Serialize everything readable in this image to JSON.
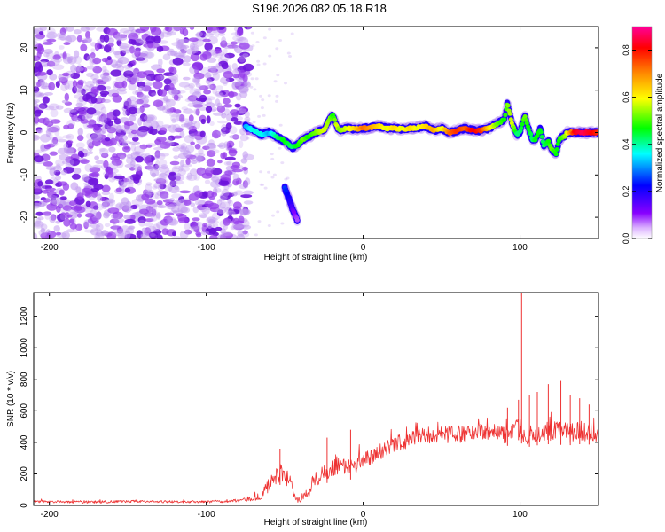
{
  "figure": {
    "title": "S196.2026.082.05.18.R18"
  },
  "chart_data": [
    {
      "type": "heatmap",
      "title": "",
      "xlabel": "Height of straight line (km)",
      "ylabel": "Frequency (Hz)",
      "xlim": [
        -210,
        150
      ],
      "ylim": [
        -25,
        25
      ],
      "xticks": [
        -200,
        -100,
        0,
        100
      ],
      "yticks": [
        -20,
        -10,
        0,
        10,
        20
      ],
      "colorbar": {
        "label": "Normalized spectral amplitude",
        "range": [
          0.0,
          0.9
        ],
        "ticks": [
          0.0,
          0.2,
          0.4,
          0.6,
          0.8
        ],
        "colors": [
          "#ffffff",
          "#8800ff",
          "#0000ff",
          "#00ffff",
          "#00ff00",
          "#ffff00",
          "#ff8800",
          "#ff0000",
          "#ff0099"
        ]
      },
      "noise_region_x": [
        -210,
        -75
      ],
      "signal_track": {
        "x": [
          -75,
          -70,
          -65,
          -60,
          -55,
          -50,
          -45,
          -42,
          -38,
          -35,
          -30,
          -25,
          -21,
          -19,
          -17,
          -15,
          -10,
          -5,
          0,
          5,
          10,
          15,
          20,
          25,
          30,
          35,
          40,
          45,
          50,
          55,
          60,
          65,
          70,
          75,
          80,
          85,
          90,
          92,
          95,
          98,
          100,
          103,
          105,
          108,
          110,
          113,
          115,
          118,
          120,
          123,
          125,
          128,
          130,
          135,
          140,
          145,
          150
        ],
        "freq": [
          1.5,
          0.5,
          -0.5,
          0.0,
          -1.0,
          -2.0,
          -3.5,
          -3.0,
          -1.5,
          -1.0,
          0.0,
          0.5,
          3.5,
          4.0,
          1.5,
          0.5,
          1.0,
          0.8,
          1.0,
          1.2,
          1.5,
          1.0,
          1.0,
          0.8,
          1.0,
          1.2,
          1.5,
          0.5,
          1.0,
          0.0,
          0.5,
          1.0,
          0.5,
          0.5,
          1.0,
          2.0,
          3.0,
          7.0,
          2.0,
          -0.5,
          0.0,
          4.0,
          1.5,
          -2.0,
          -1.5,
          1.0,
          -3.0,
          -2.0,
          -4.0,
          -5.0,
          -1.5,
          -1.0,
          0.0,
          0.0,
          0.0,
          0.0,
          0.0
        ],
        "amp": [
          0.3,
          0.35,
          0.35,
          0.3,
          0.4,
          0.45,
          0.4,
          0.45,
          0.5,
          0.45,
          0.5,
          0.55,
          0.5,
          0.45,
          0.55,
          0.5,
          0.55,
          0.6,
          0.7,
          0.65,
          0.6,
          0.55,
          0.6,
          0.55,
          0.6,
          0.55,
          0.6,
          0.65,
          0.55,
          0.7,
          0.75,
          0.7,
          0.8,
          0.75,
          0.6,
          0.5,
          0.45,
          0.5,
          0.55,
          0.4,
          0.4,
          0.5,
          0.45,
          0.4,
          0.45,
          0.45,
          0.4,
          0.45,
          0.5,
          0.45,
          0.45,
          0.5,
          0.55,
          0.8,
          0.85,
          0.8,
          0.75
        ]
      },
      "secondary_track": {
        "x": [
          -50,
          -48,
          -46,
          -44,
          -42
        ],
        "freq": [
          -13.0,
          -15.0,
          -17.0,
          -19.0,
          -20.5
        ],
        "amp": [
          0.25,
          0.22,
          0.18,
          0.12,
          0.08
        ]
      }
    },
    {
      "type": "line",
      "title": "",
      "xlabel": "Height of straight line (km)",
      "ylabel": "SNR (10 * v/v)",
      "xlim": [
        -210,
        150
      ],
      "ylim": [
        0,
        1350
      ],
      "xticks": [
        -200,
        -100,
        0,
        100
      ],
      "yticks": [
        0,
        200,
        400,
        600,
        800,
        1000,
        1200
      ],
      "color": "#ee3333",
      "series": [
        {
          "name": "SNR",
          "x": [
            -210,
            -180,
            -150,
            -120,
            -90,
            -75,
            -65,
            -60,
            -56,
            -53,
            -50,
            -48,
            -45,
            -43,
            -40,
            -35,
            -30,
            -25,
            -20,
            -15,
            -10,
            -5,
            0,
            5,
            10,
            20,
            30,
            40,
            50,
            60,
            70,
            80,
            90,
            95,
            100,
            103,
            105,
            110,
            120,
            130,
            140,
            150
          ],
          "y": [
            25,
            20,
            25,
            22,
            25,
            35,
            60,
            130,
            170,
            210,
            190,
            150,
            120,
            30,
            40,
            90,
            170,
            210,
            240,
            260,
            240,
            250,
            280,
            310,
            340,
            390,
            420,
            440,
            450,
            450,
            460,
            470,
            450,
            470,
            500,
            420,
            450,
            460,
            470,
            460,
            470,
            460
          ],
          "spread": [
            8,
            8,
            8,
            8,
            8,
            12,
            25,
            45,
            55,
            60,
            55,
            45,
            35,
            15,
            20,
            40,
            55,
            60,
            60,
            55,
            55,
            55,
            55,
            55,
            55,
            55,
            55,
            55,
            55,
            55,
            55,
            55,
            60,
            60,
            70,
            60,
            60,
            60,
            65,
            65,
            65,
            60
          ],
          "spikes": [
            {
              "x": -53,
              "y": 360
            },
            {
              "x": -23,
              "y": 430
            },
            {
              "x": -8,
              "y": 480
            },
            {
              "x": 92,
              "y": 620
            },
            {
              "x": 99,
              "y": 670
            },
            {
              "x": 101,
              "y": 1350
            },
            {
              "x": 106,
              "y": 700
            },
            {
              "x": 111,
              "y": 720
            },
            {
              "x": 118,
              "y": 770
            },
            {
              "x": 126,
              "y": 790
            },
            {
              "x": 132,
              "y": 700
            },
            {
              "x": 138,
              "y": 680
            },
            {
              "x": 144,
              "y": 640
            }
          ]
        }
      ]
    }
  ]
}
